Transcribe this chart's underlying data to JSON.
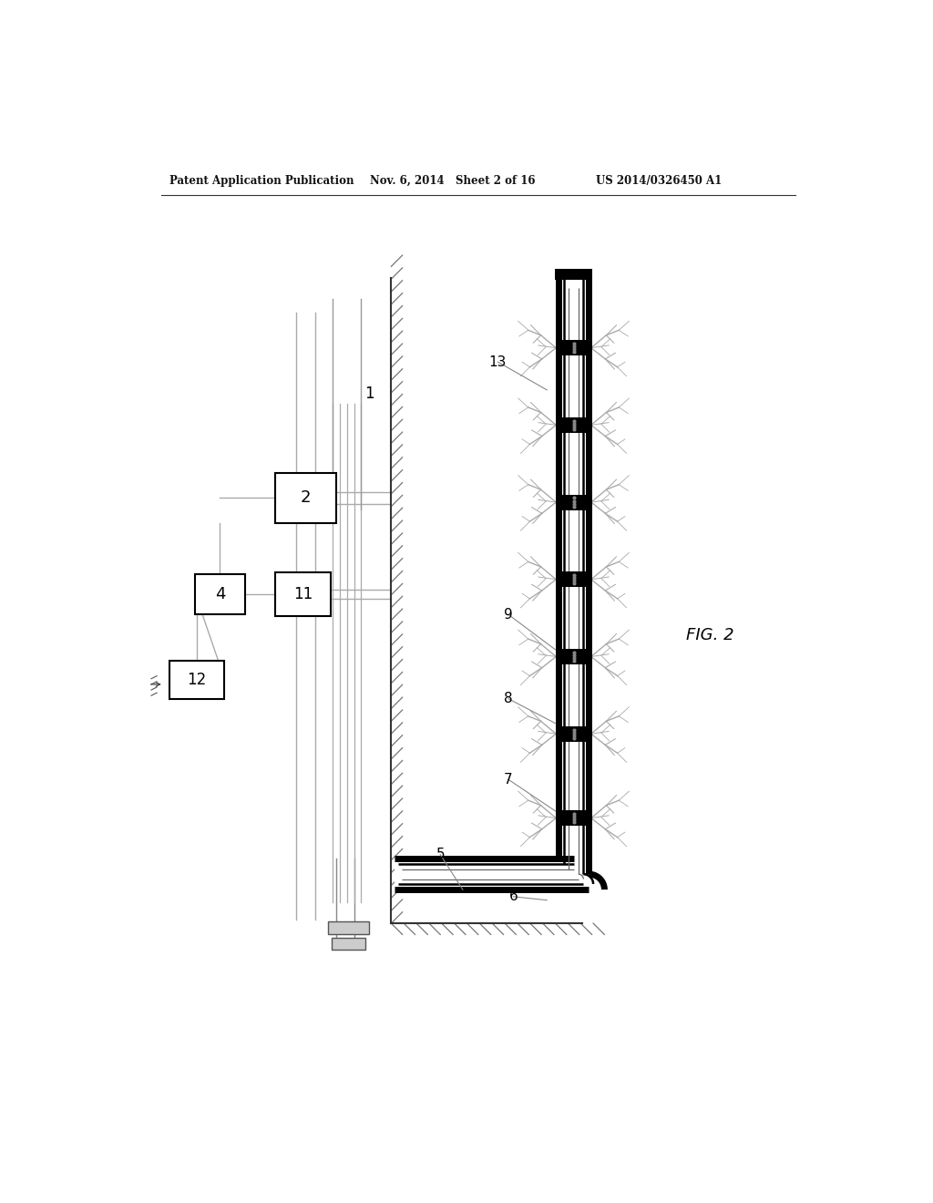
{
  "bg_color": "#ffffff",
  "header_left": "Patent Application Publication",
  "header_center": "Nov. 6, 2014   Sheet 2 of 16",
  "header_right": "US 2014/0326450 A1",
  "fig_label": "FIG. 2",
  "line_color": "#000000",
  "light_line_color": "#aaaaaa",
  "hatch_color": "#777777",
  "box_outline": "#000000",
  "crack_color": "#999999"
}
